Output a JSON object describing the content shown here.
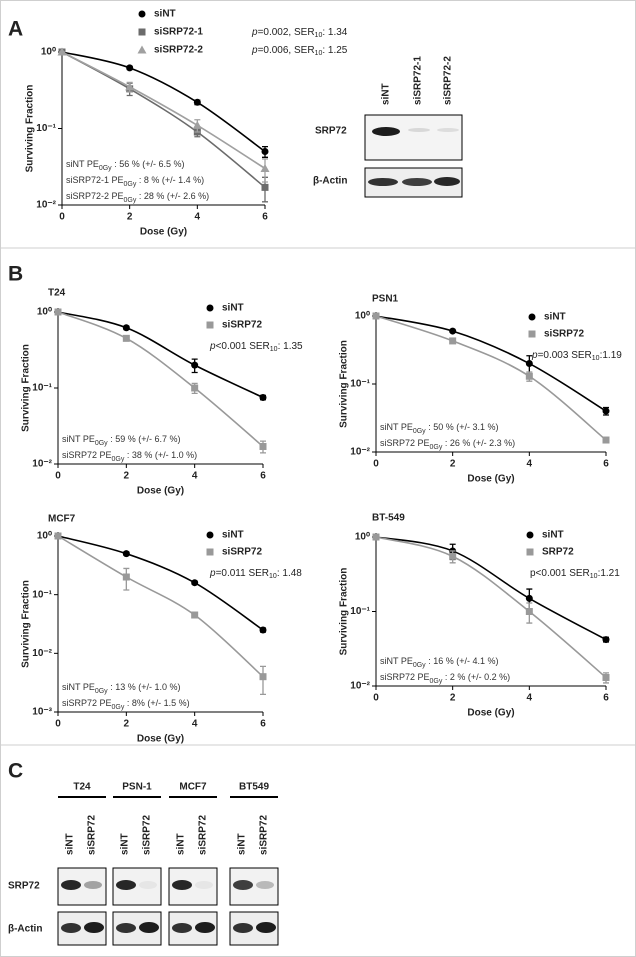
{
  "panel_labels": [
    "A",
    "B",
    "C"
  ],
  "chart_data": [
    {
      "type": "line",
      "log_y": true,
      "legend": "top",
      "x_label": "Dose (Gy)",
      "y_label": "Surviving Fraction",
      "x": [
        0,
        2,
        4,
        6
      ],
      "xlim": [
        0,
        6
      ],
      "xticks": [
        0,
        2,
        4,
        6
      ],
      "ylim": [
        0.01,
        1
      ],
      "yticks": [
        {
          "value": 1,
          "label": "10⁰"
        },
        {
          "value": 0.1,
          "label": "10⁻¹"
        },
        {
          "value": 0.01,
          "label": "10⁻²"
        }
      ],
      "series": [
        {
          "name": "siNT",
          "color": "#000000",
          "marker": "circle",
          "values": [
            1,
            0.62,
            0.22,
            0.05
          ],
          "errors": [
            0,
            0.03,
            0.015,
            0.008
          ]
        },
        {
          "name": "siSRP72-1",
          "color": "#6b6b6b",
          "marker": "square",
          "values": [
            1,
            0.33,
            0.09,
            0.017
          ],
          "errors": [
            0,
            0.06,
            0.012,
            0.006
          ],
          "stats": [
            {
              "text": "p",
              "italic": true
            },
            {
              "text": "=0.002, SER"
            },
            {
              "text": "10",
              "sub": true
            },
            {
              "text": ": 1.34"
            }
          ]
        },
        {
          "name": "siSRP72-2",
          "color": "#a0a0a0",
          "marker": "triangle",
          "values": [
            1,
            0.35,
            0.11,
            0.03
          ],
          "errors": [
            0,
            0.05,
            0.02,
            0.01
          ],
          "stats": [
            {
              "text": "p",
              "italic": true
            },
            {
              "text": "=0.006, SER"
            },
            {
              "text": "10",
              "sub": true
            },
            {
              "text": ": 1.25"
            }
          ]
        }
      ],
      "annotations": [
        [
          {
            "text": "siNT PE"
          },
          {
            "text": "0Gy",
            "sub": true
          },
          {
            "text": " : 56 % (+/- 6.5 %)"
          }
        ],
        [
          {
            "text": "siSRP72-1 PE"
          },
          {
            "text": "0Gy",
            "sub": true
          },
          {
            "text": " : 8 % (+/- 1.4 %)"
          }
        ],
        [
          {
            "text": "siSRP72-2 PE"
          },
          {
            "text": "0Gy",
            "sub": true
          },
          {
            "text": " : 28 % (+/- 2.6 %)"
          }
        ]
      ]
    },
    {
      "type": "line",
      "log_y": true,
      "legend": "upper right",
      "title": "T24",
      "x_label": "Dose (Gy)",
      "y_label": "Surviving Fraction",
      "x": [
        0,
        2,
        4,
        6
      ],
      "xlim": [
        0,
        6
      ],
      "xticks": [
        0,
        2,
        4,
        6
      ],
      "ylim": [
        0.01,
        1
      ],
      "yticks": [
        {
          "value": 1,
          "label": "10⁰"
        },
        {
          "value": 0.1,
          "label": "10⁻¹"
        },
        {
          "value": 0.01,
          "label": "10⁻²"
        }
      ],
      "series": [
        {
          "name": "siNT",
          "color": "#000000",
          "marker": "circle",
          "values": [
            1,
            0.62,
            0.2,
            0.075
          ],
          "errors": [
            0,
            0.03,
            0.04,
            0.005
          ]
        },
        {
          "name": "siSRP72",
          "color": "#999999",
          "marker": "square",
          "values": [
            1,
            0.45,
            0.1,
            0.017
          ],
          "errors": [
            0,
            0.02,
            0.015,
            0.003
          ]
        }
      ],
      "stats": [
        {
          "text": "p",
          "italic": true
        },
        {
          "text": "<0.001 SER"
        },
        {
          "text": "10",
          "sub": true
        },
        {
          "text": ": 1.35"
        }
      ],
      "annotations": [
        [
          {
            "text": "siNT PE"
          },
          {
            "text": "0Gy",
            "sub": true
          },
          {
            "text": " : 59 % (+/- 6.7 %)"
          }
        ],
        [
          {
            "text": "siSRP72 PE"
          },
          {
            "text": "0Gy",
            "sub": true
          },
          {
            "text": " : 38 % (+/- 1.0 %)"
          }
        ]
      ]
    },
    {
      "type": "line",
      "log_y": true,
      "legend": "upper right",
      "title": "PSN1",
      "x_label": "Dose (Gy)",
      "y_label": "Surviving Fraction",
      "x": [
        0,
        2,
        4,
        6
      ],
      "xlim": [
        0,
        6
      ],
      "xticks": [
        0,
        2,
        4,
        6
      ],
      "ylim": [
        0.01,
        1
      ],
      "yticks": [
        {
          "value": 1,
          "label": "10⁰"
        },
        {
          "value": 0.1,
          "label": "10⁻¹"
        },
        {
          "value": 0.01,
          "label": "10⁻²"
        }
      ],
      "series": [
        {
          "name": "siNT",
          "color": "#000000",
          "marker": "circle",
          "values": [
            1,
            0.6,
            0.2,
            0.04
          ],
          "errors": [
            0,
            0.02,
            0.06,
            0.005
          ]
        },
        {
          "name": "siSRP72",
          "color": "#999999",
          "marker": "square",
          "values": [
            1,
            0.43,
            0.13,
            0.015
          ],
          "errors": [
            0,
            0.02,
            0.02,
            0.001
          ]
        }
      ],
      "stats": [
        {
          "text": "p",
          "italic": true
        },
        {
          "text": "=0.003 SER"
        },
        {
          "text": "10",
          "sub": true
        },
        {
          "text": ":1.19"
        }
      ],
      "annotations": [
        [
          {
            "text": "siNT PE"
          },
          {
            "text": "0Gy",
            "sub": true
          },
          {
            "text": " : 50 % (+/- 3.1 %)"
          }
        ],
        [
          {
            "text": "siSRP72 PE"
          },
          {
            "text": "0Gy",
            "sub": true
          },
          {
            "text": " : 26 % (+/- 2.3 %)"
          }
        ]
      ]
    },
    {
      "type": "line",
      "log_y": true,
      "legend": "upper right",
      "title": "MCF7",
      "x_label": "Dose (Gy)",
      "y_label": "Surviving Fraction",
      "x": [
        0,
        2,
        4,
        6
      ],
      "xlim": [
        0,
        6
      ],
      "xticks": [
        0,
        2,
        4,
        6
      ],
      "ylim": [
        0.001,
        1
      ],
      "yticks": [
        {
          "value": 1,
          "label": "10⁰"
        },
        {
          "value": 0.1,
          "label": "10⁻¹"
        },
        {
          "value": 0.01,
          "label": "10⁻²"
        },
        {
          "value": 0.001,
          "label": "10⁻³"
        }
      ],
      "series": [
        {
          "name": "siNT",
          "color": "#000000",
          "marker": "circle",
          "values": [
            1,
            0.5,
            0.16,
            0.025
          ],
          "errors": [
            0,
            0.03,
            0.01,
            0.002
          ]
        },
        {
          "name": "siSRP72",
          "color": "#999999",
          "marker": "square",
          "values": [
            1,
            0.2,
            0.045,
            0.004
          ],
          "errors": [
            0,
            0.08,
            0.004,
            0.002
          ]
        }
      ],
      "stats": [
        {
          "text": "p",
          "italic": true
        },
        {
          "text": "=0.011 SER"
        },
        {
          "text": "10",
          "sub": true
        },
        {
          "text": ": 1.48"
        }
      ],
      "annotations": [
        [
          {
            "text": "siNT PE"
          },
          {
            "text": "0Gy",
            "sub": true
          },
          {
            "text": " : 13 % (+/- 1.0 %)"
          }
        ],
        [
          {
            "text": "siSRP72 PE"
          },
          {
            "text": "0Gy",
            "sub": true
          },
          {
            "text": " : 8% (+/- 1.5 %)"
          }
        ]
      ]
    },
    {
      "type": "line",
      "log_y": true,
      "legend": "upper right",
      "title": "BT-549",
      "x_label": "Dose (Gy)",
      "y_label": "Surviving Fraction",
      "x": [
        0,
        2,
        4,
        6
      ],
      "xlim": [
        0,
        6
      ],
      "xticks": [
        0,
        2,
        4,
        6
      ],
      "ylim": [
        0.01,
        1
      ],
      "yticks": [
        {
          "value": 1,
          "label": "10⁰"
        },
        {
          "value": 0.1,
          "label": "10⁻¹"
        },
        {
          "value": 0.01,
          "label": "10⁻²"
        }
      ],
      "series": [
        {
          "name": "siNT",
          "color": "#000000",
          "marker": "circle",
          "values": [
            1,
            0.65,
            0.15,
            0.042
          ],
          "errors": [
            0,
            0.15,
            0.05,
            0.003
          ]
        },
        {
          "name": "SRP72",
          "color": "#999999",
          "marker": "square",
          "values": [
            1,
            0.55,
            0.1,
            0.013
          ],
          "errors": [
            0,
            0.1,
            0.03,
            0.002
          ]
        }
      ],
      "stats": [
        {
          "text": "p<0.001 SER"
        },
        {
          "text": "10",
          "sub": true
        },
        {
          "text": ":1.21"
        }
      ],
      "annotations": [
        [
          {
            "text": "siNT PE"
          },
          {
            "text": "0Gy",
            "sub": true
          },
          {
            "text": " : 16 % (+/- 4.1 %)"
          }
        ],
        [
          {
            "text": "siSRP72 PE"
          },
          {
            "text": "0Gy",
            "sub": true
          },
          {
            "text": " : 2 % (+/- 0.2 %)"
          }
        ]
      ]
    }
  ],
  "panel_a_blot": {
    "lanes": [
      "siNT",
      "siSRP72-1",
      "siSRP72-2"
    ],
    "rows": [
      "SRP72",
      "β-Actin"
    ]
  },
  "panel_c_blot": {
    "cell_lines": [
      {
        "name": "T24",
        "lanes": [
          "siNT",
          "siSRP72"
        ]
      },
      {
        "name": "PSN-1",
        "lanes": [
          "siNT",
          "siSRP72"
        ]
      },
      {
        "name": "MCF7",
        "lanes": [
          "siNT",
          "siSRP72"
        ]
      },
      {
        "name": "BT549",
        "lanes": [
          "siNT",
          "siSRP72"
        ]
      }
    ],
    "rows": [
      "SRP72",
      "β-Actin"
    ]
  }
}
